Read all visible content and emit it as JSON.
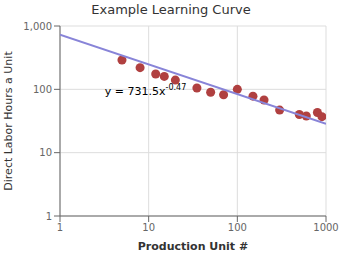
{
  "chart_data": {
    "type": "scatter",
    "title": "Example Learning Curve",
    "xlabel": "Production Unit #",
    "ylabel": "Direct Labor Hours a Unit",
    "log": true,
    "grid": true,
    "xlim": [
      1,
      1000
    ],
    "ylim": [
      1,
      1000
    ],
    "xticks": [
      1,
      10,
      100,
      1000
    ],
    "yticks": [
      1,
      10,
      100,
      {
        "value": 1000,
        "label": "1,000"
      }
    ],
    "series": [
      {
        "type": "scatter",
        "color": "#b04040",
        "x": [
          5,
          8,
          12,
          15,
          20,
          35,
          50,
          70,
          100,
          150,
          200,
          300,
          500,
          600,
          800,
          900
        ],
        "values": [
          290,
          220,
          175,
          160,
          140,
          105,
          90,
          82,
          100,
          78,
          68,
          47,
          40,
          38,
          43,
          37
        ]
      },
      {
        "type": "line",
        "x": [
          1,
          1000
        ],
        "values": [
          731.5,
          28.4586
        ]
      }
    ],
    "annotations": [
      {
        "text": "y = 731.5x",
        "superscript": "-0.47",
        "x": 3.2,
        "y": 82
      }
    ]
  }
}
